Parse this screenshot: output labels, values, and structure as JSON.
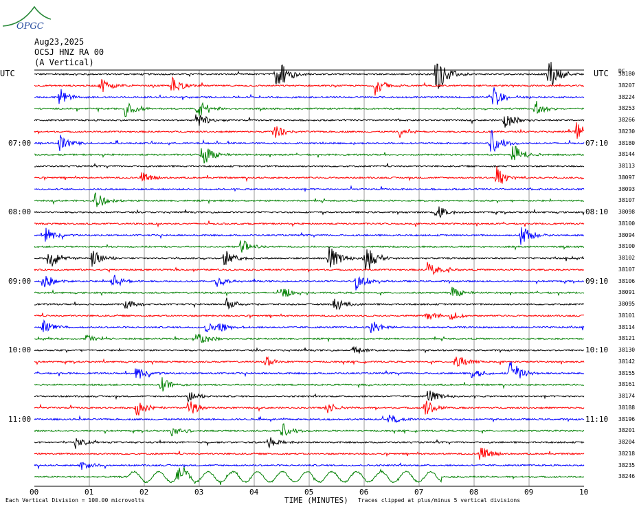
{
  "header": {
    "date": "Aug23,2025",
    "station": "OCSJ HNZ RA 00",
    "component": "(A Vertical)",
    "logo_text": "OPGC"
  },
  "axis_labels": {
    "left_tz": "UTC",
    "right_tz": "UTC",
    "dc": "DC"
  },
  "footer": {
    "scale_note": "Each Vertical Division =  100.00 microvolts",
    "clip_note": "Traces clipped at plus/minus 5 vertical divisions"
  },
  "colors": {
    "trace_cycle": [
      "#000000",
      "#ff0000",
      "#0000ff",
      "#008000"
    ],
    "grid": "#808080"
  },
  "chart_data": {
    "type": "line",
    "xlabel": "TIME (MINUTES)",
    "xlim": [
      0,
      10
    ],
    "x_ticks": [
      "00",
      "01",
      "02",
      "03",
      "04",
      "05",
      "06",
      "07",
      "08",
      "09",
      "10"
    ],
    "left_hour_labels": [
      {
        "row": 6,
        "label": "07:00"
      },
      {
        "row": 12,
        "label": "08:00"
      },
      {
        "row": 18,
        "label": "09:00"
      },
      {
        "row": 24,
        "label": "10:00"
      },
      {
        "row": 30,
        "label": "11:00"
      }
    ],
    "right_hour_labels": [
      {
        "row": 6,
        "label": "07:10"
      },
      {
        "row": 12,
        "label": "08:10"
      },
      {
        "row": 18,
        "label": "09:10"
      },
      {
        "row": 24,
        "label": "10:10"
      },
      {
        "row": 30,
        "label": "11:10"
      }
    ],
    "dc_offsets": [
      38180,
      38207,
      38224,
      38253,
      38266,
      38230,
      38180,
      38144,
      38113,
      38097,
      38093,
      38107,
      38098,
      38100,
      38094,
      38100,
      38102,
      38107,
      38106,
      38091,
      38095,
      38101,
      38114,
      38121,
      38130,
      38142,
      38155,
      38161,
      38174,
      38188,
      38196,
      38201,
      38204,
      38218,
      38235,
      38246
    ],
    "events": [
      {
        "row": 0,
        "t": 4.4,
        "amp": 7
      },
      {
        "row": 0,
        "t": 7.3,
        "amp": 7
      },
      {
        "row": 0,
        "t": 9.35,
        "amp": 6
      },
      {
        "row": 1,
        "t": 1.2,
        "amp": 3
      },
      {
        "row": 1,
        "t": 2.5,
        "amp": 3
      },
      {
        "row": 1,
        "t": 6.2,
        "amp": 3
      },
      {
        "row": 2,
        "t": 0.45,
        "amp": 3
      },
      {
        "row": 2,
        "t": 8.35,
        "amp": 4
      },
      {
        "row": 3,
        "t": 1.65,
        "amp": 3
      },
      {
        "row": 3,
        "t": 2.95,
        "amp": 4
      },
      {
        "row": 3,
        "t": 9.1,
        "amp": 3
      },
      {
        "row": 4,
        "t": 2.95,
        "amp": 3
      },
      {
        "row": 4,
        "t": 8.55,
        "amp": 3
      },
      {
        "row": 5,
        "t": 4.35,
        "amp": 3
      },
      {
        "row": 5,
        "t": 6.65,
        "amp": 2
      },
      {
        "row": 5,
        "t": 9.85,
        "amp": 3
      },
      {
        "row": 6,
        "t": 0.45,
        "amp": 3
      },
      {
        "row": 6,
        "t": 8.3,
        "amp": 5
      },
      {
        "row": 7,
        "t": 3.05,
        "amp": 4
      },
      {
        "row": 7,
        "t": 8.7,
        "amp": 4
      },
      {
        "row": 9,
        "t": 1.95,
        "amp": 2
      },
      {
        "row": 9,
        "t": 8.4,
        "amp": 4
      },
      {
        "row": 11,
        "t": 1.1,
        "amp": 3
      },
      {
        "row": 12,
        "t": 7.3,
        "amp": 3
      },
      {
        "row": 14,
        "t": 0.2,
        "amp": 3
      },
      {
        "row": 14,
        "t": 8.85,
        "amp": 4
      },
      {
        "row": 15,
        "t": 3.75,
        "amp": 3
      },
      {
        "row": 16,
        "t": 0.25,
        "amp": 4
      },
      {
        "row": 16,
        "t": 1.05,
        "amp": 3
      },
      {
        "row": 16,
        "t": 3.45,
        "amp": 3
      },
      {
        "row": 16,
        "t": 5.35,
        "amp": 5
      },
      {
        "row": 16,
        "t": 6.0,
        "amp": 6
      },
      {
        "row": 17,
        "t": 7.15,
        "amp": 3
      },
      {
        "row": 18,
        "t": 0.15,
        "amp": 3
      },
      {
        "row": 18,
        "t": 1.4,
        "amp": 3
      },
      {
        "row": 18,
        "t": 3.3,
        "amp": 2
      },
      {
        "row": 18,
        "t": 5.85,
        "amp": 3
      },
      {
        "row": 19,
        "t": 4.5,
        "amp": 2
      },
      {
        "row": 19,
        "t": 7.6,
        "amp": 2
      },
      {
        "row": 20,
        "t": 1.65,
        "amp": 2
      },
      {
        "row": 20,
        "t": 3.5,
        "amp": 2
      },
      {
        "row": 20,
        "t": 5.45,
        "amp": 3
      },
      {
        "row": 21,
        "t": 7.1,
        "amp": 2
      },
      {
        "row": 21,
        "t": 7.55,
        "amp": 2
      },
      {
        "row": 22,
        "t": 0.15,
        "amp": 3
      },
      {
        "row": 22,
        "t": 3.35,
        "amp": 2
      },
      {
        "row": 22,
        "t": 3.1,
        "amp": 2
      },
      {
        "row": 22,
        "t": 6.1,
        "amp": 3
      },
      {
        "row": 23,
        "t": 0.95,
        "amp": 2
      },
      {
        "row": 23,
        "t": 2.95,
        "amp": 3
      },
      {
        "row": 24,
        "t": 5.8,
        "amp": 2
      },
      {
        "row": 25,
        "t": 4.2,
        "amp": 2
      },
      {
        "row": 25,
        "t": 7.65,
        "amp": 3
      },
      {
        "row": 26,
        "t": 1.85,
        "amp": 3
      },
      {
        "row": 26,
        "t": 7.95,
        "amp": 2
      },
      {
        "row": 26,
        "t": 8.65,
        "amp": 5
      },
      {
        "row": 27,
        "t": 2.3,
        "amp": 3
      },
      {
        "row": 28,
        "t": 2.8,
        "amp": 2
      },
      {
        "row": 28,
        "t": 7.15,
        "amp": 3
      },
      {
        "row": 29,
        "t": 1.85,
        "amp": 3
      },
      {
        "row": 29,
        "t": 2.8,
        "amp": 3
      },
      {
        "row": 29,
        "t": 5.3,
        "amp": 2
      },
      {
        "row": 29,
        "t": 7.1,
        "amp": 3
      },
      {
        "row": 30,
        "t": 6.45,
        "amp": 2
      },
      {
        "row": 31,
        "t": 2.5,
        "amp": 2
      },
      {
        "row": 31,
        "t": 4.5,
        "amp": 3
      },
      {
        "row": 32,
        "t": 0.75,
        "amp": 2
      },
      {
        "row": 32,
        "t": 4.25,
        "amp": 2
      },
      {
        "row": 33,
        "t": 8.1,
        "amp": 3
      },
      {
        "row": 34,
        "t": 0.85,
        "amp": 2
      },
      {
        "row": 35,
        "t": 2.6,
        "amp": 3
      }
    ],
    "long_period_wave": {
      "row": 35,
      "t_start": 1.7,
      "t_end": 7.4,
      "period_min": 0.45,
      "amp": 0.45
    }
  }
}
